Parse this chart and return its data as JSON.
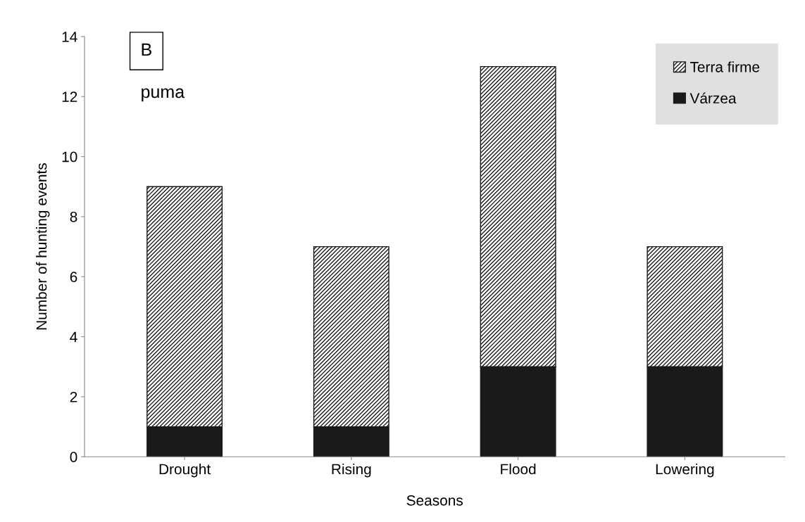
{
  "chart_data": {
    "type": "bar",
    "stacked": true,
    "xlabel": "Seasons",
    "ylabel": "Number of hunting events",
    "categories": [
      "Drought",
      "Rising",
      "Flood",
      "Lowering"
    ],
    "series": [
      {
        "name": "Várzea",
        "color": "#1a1a1a",
        "values": [
          1,
          1,
          3,
          3
        ]
      },
      {
        "name": "Terra firme",
        "color": "#1a1a1a",
        "values": [
          8,
          6,
          10,
          4
        ]
      }
    ],
    "ylim": [
      0,
      14
    ],
    "yticks": [
      0,
      2,
      4,
      6,
      8,
      10,
      12,
      14
    ],
    "grid": false,
    "legend": "top right",
    "annotations": [
      "B",
      "puma"
    ]
  }
}
